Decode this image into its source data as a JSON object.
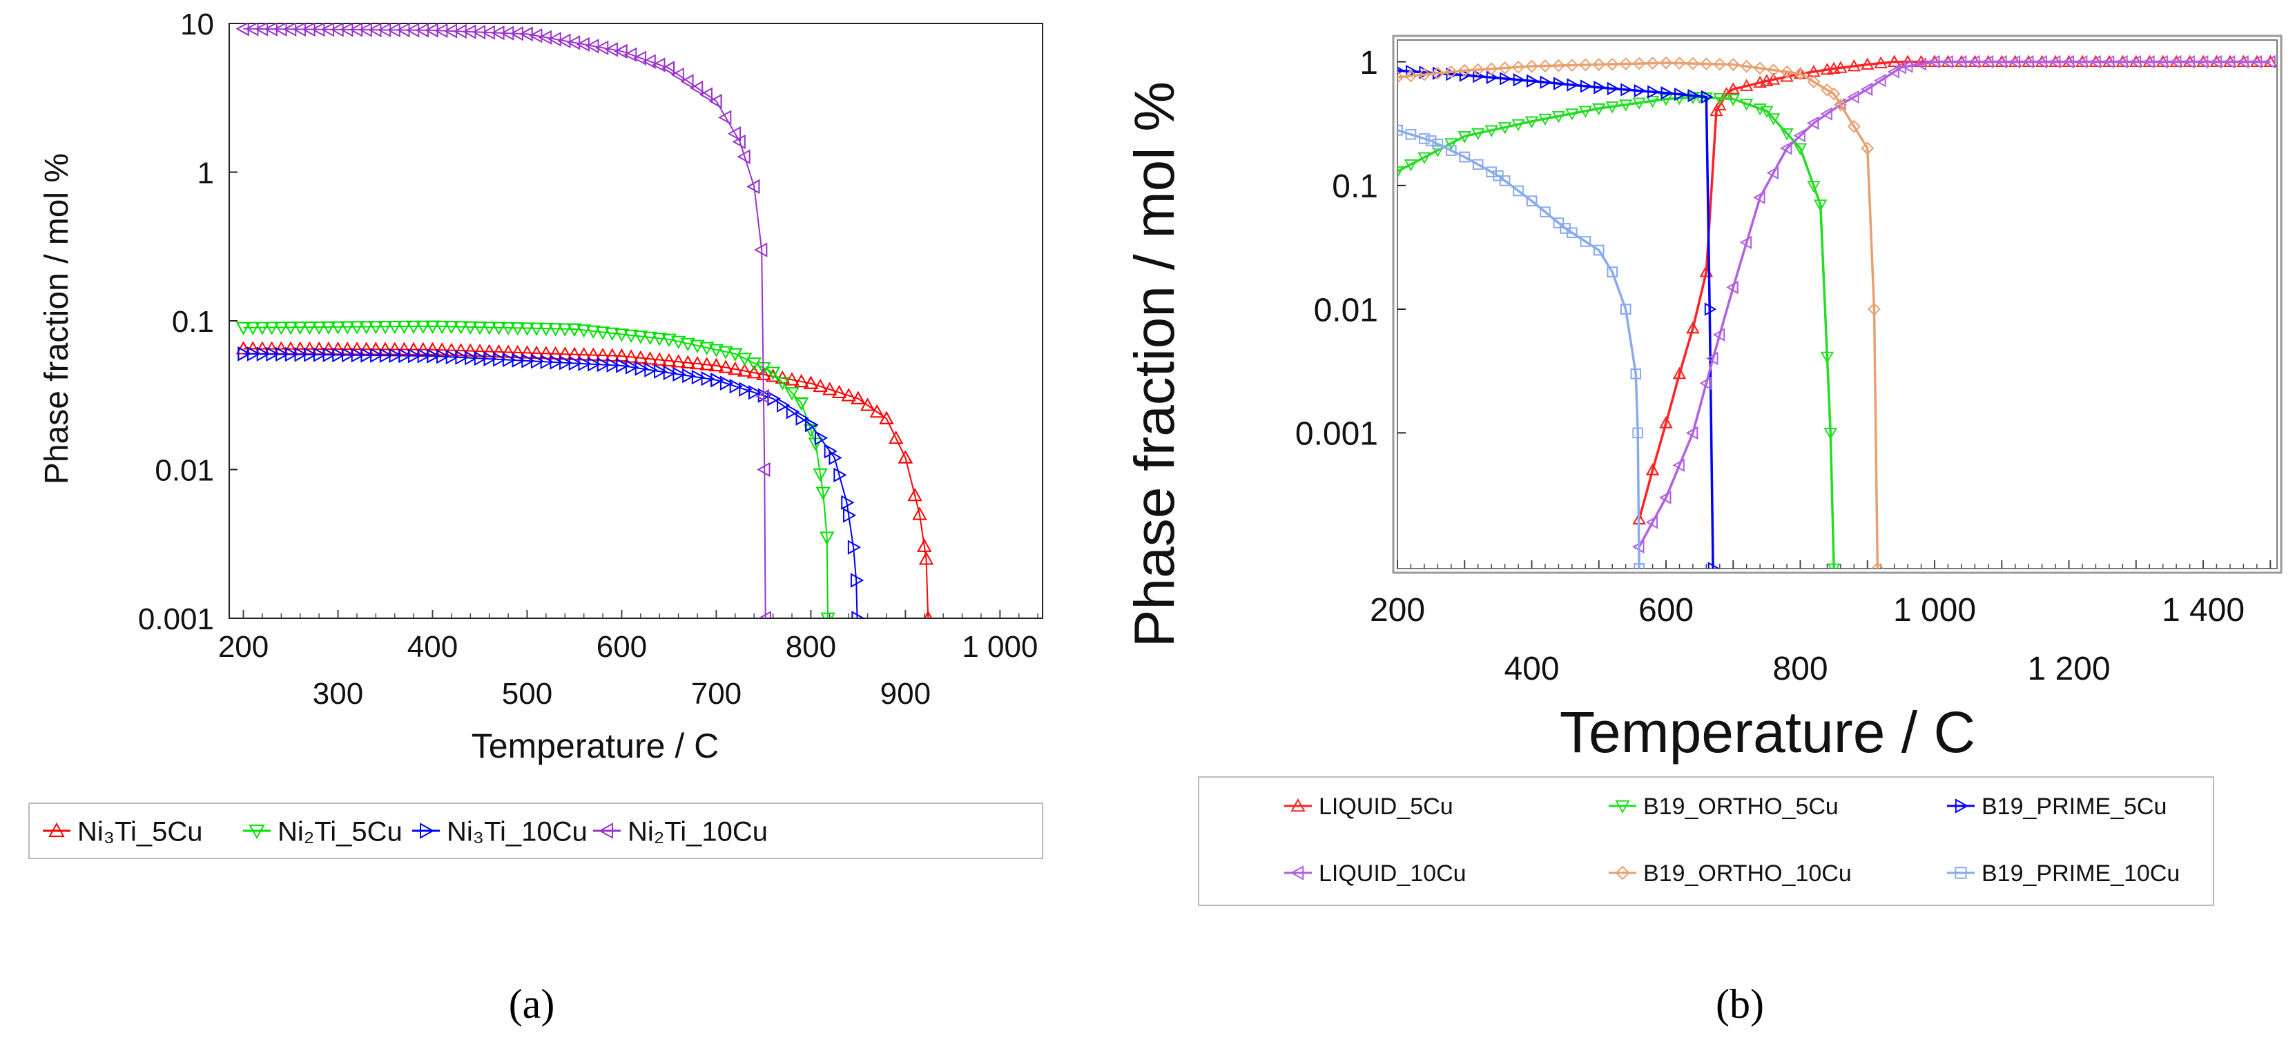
{
  "figure": {
    "panel_a_label": "(a)",
    "panel_b_label": "(b)"
  },
  "chart_data": [
    {
      "id": "a",
      "type": "line",
      "ylabel": "Phase fraction / mol %",
      "xlabel": "Temperature / C",
      "yscale": "log",
      "xlim": [
        185,
        1045
      ],
      "ylim": [
        0.001,
        10
      ],
      "grid": false,
      "legend_position": "bottom",
      "yticks": [
        {
          "value": 10,
          "label": "10"
        },
        {
          "value": 1,
          "label": "1"
        },
        {
          "value": 0.1,
          "label": "0.1"
        },
        {
          "value": 0.01,
          "label": "0.01"
        },
        {
          "value": 0.001,
          "label": "0.001"
        }
      ],
      "xticks_upper": [
        {
          "value": 200,
          "label": "200"
        },
        {
          "value": 400,
          "label": "400"
        },
        {
          "value": 600,
          "label": "600"
        },
        {
          "value": 800,
          "label": "800"
        },
        {
          "value": 1000,
          "label": "1 000"
        }
      ],
      "xticks_lower": [
        {
          "value": 300,
          "label": "300"
        },
        {
          "value": 500,
          "label": "500"
        },
        {
          "value": 700,
          "label": "700"
        },
        {
          "value": 900,
          "label": "900"
        }
      ],
      "series": [
        {
          "name": "Ni₃Ti_5Cu",
          "color": "#ff0000",
          "marker": "triangle-up",
          "x": [
            200,
            400,
            600,
            700,
            800,
            850,
            880,
            900,
            915,
            922,
            924
          ],
          "y": [
            0.065,
            0.064,
            0.058,
            0.05,
            0.038,
            0.03,
            0.022,
            0.012,
            0.005,
            0.0025,
            0.001
          ]
        },
        {
          "name": "Ni₂Ti_5Cu",
          "color": "#00e000",
          "marker": "triangle-down",
          "x": [
            200,
            400,
            550,
            650,
            720,
            760,
            790,
            805,
            813,
            817,
            818
          ],
          "y": [
            0.09,
            0.092,
            0.088,
            0.075,
            0.06,
            0.045,
            0.028,
            0.015,
            0.007,
            0.0035,
            0.001
          ]
        },
        {
          "name": "Ni₃Ti_10Cu",
          "color": "#0000ff",
          "marker": "triangle-right",
          "x": [
            200,
            400,
            600,
            700,
            760,
            800,
            825,
            838,
            845,
            848,
            849
          ],
          "y": [
            0.06,
            0.058,
            0.05,
            0.04,
            0.03,
            0.02,
            0.012,
            0.006,
            0.003,
            0.0018,
            0.001
          ]
        },
        {
          "name": "Ni₂Ti_10Cu",
          "color": "#9933cc",
          "marker": "triangle-left",
          "x": [
            200,
            400,
            500,
            600,
            650,
            700,
            725,
            740,
            748,
            751,
            752
          ],
          "y": [
            9.2,
            9.0,
            8.5,
            6.5,
            5.0,
            3.0,
            1.6,
            0.8,
            0.3,
            0.01,
            0.001
          ]
        }
      ]
    },
    {
      "id": "b",
      "type": "line",
      "ylabel": "Phase fraction / mol %",
      "xlabel": "Temperature / C",
      "yscale": "log",
      "xlim": [
        200,
        1510
      ],
      "ylim": [
        8e-05,
        1.5
      ],
      "grid": false,
      "legend_position": "bottom",
      "yticks": [
        {
          "value": 1,
          "label": "1"
        },
        {
          "value": 0.1,
          "label": "0.1"
        },
        {
          "value": 0.01,
          "label": "0.01"
        },
        {
          "value": 0.001,
          "label": "0.001"
        }
      ],
      "xticks_upper": [
        {
          "value": 200,
          "label": "200"
        },
        {
          "value": 600,
          "label": "600"
        },
        {
          "value": 1000,
          "label": "1 000"
        },
        {
          "value": 1400,
          "label": "1 400"
        }
      ],
      "xticks_lower": [
        {
          "value": 400,
          "label": "400"
        },
        {
          "value": 800,
          "label": "800"
        },
        {
          "value": 1200,
          "label": "1 200"
        }
      ],
      "series": [
        {
          "name": "LIQUID_5Cu",
          "color": "#ff2222",
          "marker": "triangle-up",
          "x": [
            560,
            580,
            600,
            620,
            640,
            660,
            675,
            690,
            700,
            750,
            800,
            850,
            900,
            940,
            960,
            1000,
            1200,
            1500
          ],
          "y": [
            0.0002,
            0.0005,
            0.0012,
            0.003,
            0.007,
            0.02,
            0.4,
            0.55,
            0.6,
            0.7,
            0.8,
            0.88,
            0.95,
            1.0,
            1.0,
            1.0,
            1.0,
            1.0
          ]
        },
        {
          "name": "B19_ORTHO_5Cu",
          "color": "#22dd22",
          "marker": "triangle-down",
          "x": [
            200,
            300,
            400,
            500,
            600,
            650,
            700,
            750,
            800,
            830,
            845,
            850
          ],
          "y": [
            0.13,
            0.25,
            0.33,
            0.42,
            0.5,
            0.52,
            0.5,
            0.4,
            0.2,
            0.07,
            0.001,
            8e-05
          ]
        },
        {
          "name": "B19_PRIME_5Cu",
          "color": "#0000ff",
          "marker": "triangle-right",
          "x": [
            200,
            300,
            400,
            500,
            600,
            660,
            665,
            670
          ],
          "y": [
            0.85,
            0.78,
            0.7,
            0.62,
            0.56,
            0.52,
            0.01,
            8e-05
          ]
        },
        {
          "name": "LIQUID_10Cu",
          "color": "#b060e0",
          "marker": "triangle-left",
          "x": [
            560,
            600,
            640,
            670,
            700,
            740,
            780,
            820,
            860,
            900,
            950,
            1000,
            1200,
            1500
          ],
          "y": [
            0.00012,
            0.0003,
            0.001,
            0.004,
            0.015,
            0.08,
            0.2,
            0.32,
            0.45,
            0.6,
            0.9,
            1.0,
            1.0,
            1.0
          ]
        },
        {
          "name": "B19_ORTHO_10Cu",
          "color": "#e8a070",
          "marker": "diamond",
          "x": [
            200,
            300,
            400,
            500,
            600,
            700,
            800,
            850,
            880,
            900,
            910,
            915
          ],
          "y": [
            0.75,
            0.85,
            0.92,
            0.95,
            0.98,
            0.95,
            0.8,
            0.55,
            0.3,
            0.2,
            0.01,
            8e-05
          ]
        },
        {
          "name": "B19_PRIME_10Cu",
          "color": "#88aaee",
          "marker": "square",
          "x": [
            200,
            250,
            300,
            350,
            400,
            450,
            500,
            520,
            540,
            555,
            558,
            560
          ],
          "y": [
            0.28,
            0.23,
            0.17,
            0.12,
            0.075,
            0.045,
            0.03,
            0.02,
            0.01,
            0.003,
            0.001,
            8e-05
          ]
        }
      ]
    }
  ]
}
